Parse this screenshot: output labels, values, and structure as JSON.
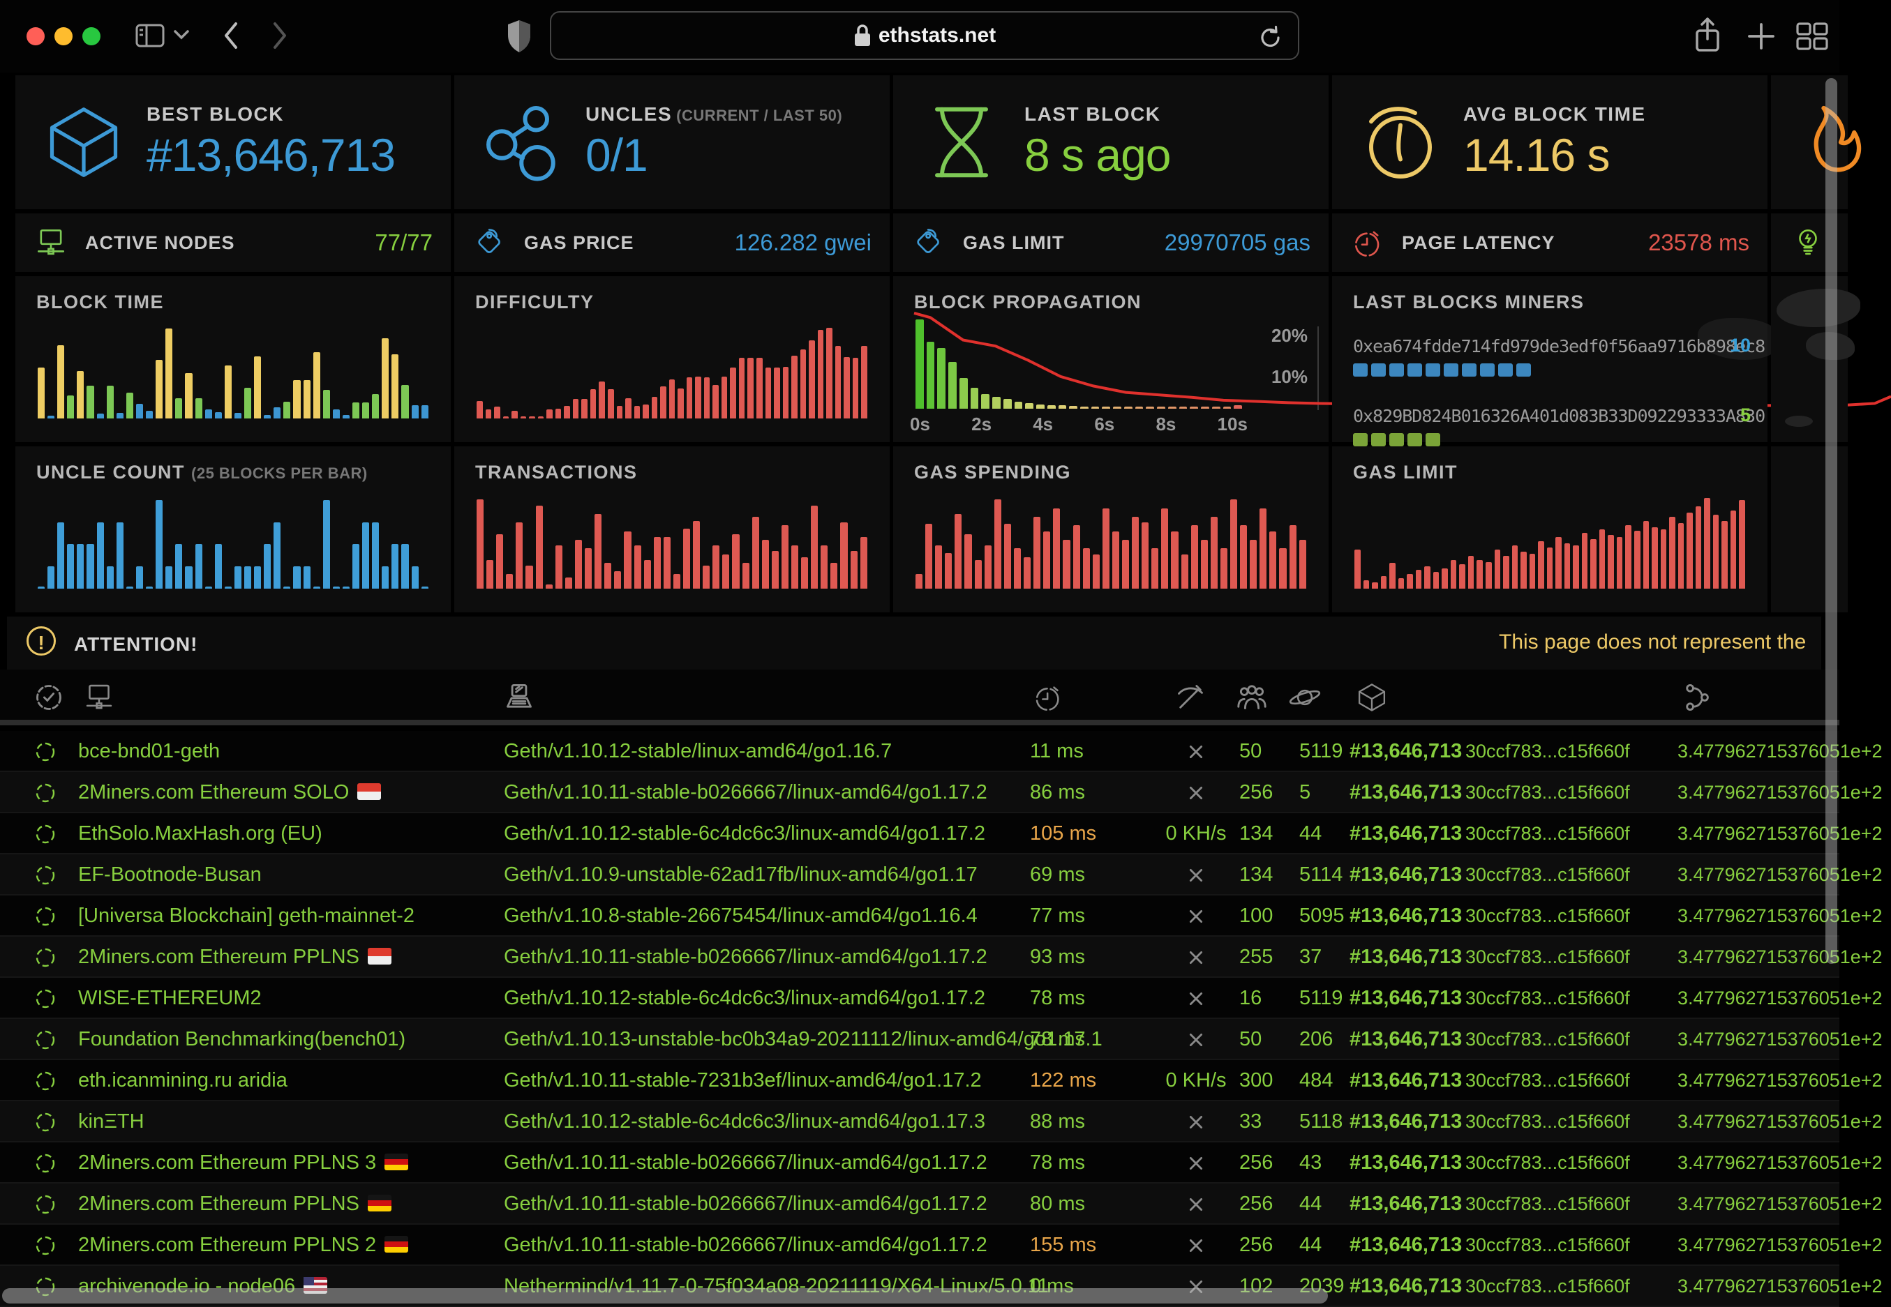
{
  "browser": {
    "url": "ethstats.net",
    "traffic_light_colors": [
      "#ff5f57",
      "#febc2e",
      "#28c840"
    ],
    "icons": [
      "sidebar-toggle-icon",
      "chevron-down-icon",
      "back-icon",
      "forward-icon",
      "shield-icon",
      "lock-icon",
      "reload-icon",
      "share-icon",
      "new-tab-icon",
      "tab-overview-icon"
    ]
  },
  "accent_colors": {
    "blue": "#3d9ad6",
    "green": "#87cf3f",
    "yellow": "#edc967",
    "red": "#e0564d",
    "orange": "#f08a24"
  },
  "stats_top": [
    {
      "label": "BEST BLOCK",
      "value": "#13,646,713",
      "icon": "cube-icon"
    },
    {
      "label": "UNCLES",
      "sublabel": "(CURRENT / LAST 50)",
      "value": "0/1",
      "icon": "uncles-icon"
    },
    {
      "label": "LAST BLOCK",
      "value": "8 s ago",
      "icon": "hourglass-icon"
    },
    {
      "label": "AVG BLOCK TIME",
      "value": "14.16 s",
      "icon": "gauge-icon"
    },
    {
      "label": "",
      "value": "",
      "icon": "flame-icon"
    }
  ],
  "stats_mini": [
    {
      "label": "ACTIVE NODES",
      "value": "77/77",
      "icon": "nodes-icon"
    },
    {
      "label": "GAS PRICE",
      "value": "126.282 gwei",
      "icon": "price-tag-icon"
    },
    {
      "label": "GAS LIMIT",
      "value": "29970705 gas",
      "icon": "price-tag-icon"
    },
    {
      "label": "PAGE LATENCY",
      "value": "23578 ms",
      "icon": "stopwatch-icon"
    },
    {
      "label": "",
      "value": "",
      "icon": "lightbulb-icon"
    }
  ],
  "chart_data": [
    {
      "id": "block-time",
      "type": "bar",
      "title": "BLOCK TIME",
      "values": [
        55,
        3,
        79,
        25,
        51,
        35,
        5,
        35,
        6,
        28,
        16,
        8,
        63,
        97,
        22,
        49,
        22,
        10,
        7,
        57,
        6,
        33,
        67,
        4,
        12,
        18,
        41,
        41,
        71,
        31,
        10,
        4,
        17,
        17,
        26,
        86,
        69,
        36,
        14,
        14
      ],
      "color_codes": [
        "y",
        "b",
        "y",
        "g",
        "y",
        "g",
        "b",
        "g",
        "b",
        "g",
        "b",
        "b",
        "y",
        "y",
        "g",
        "y",
        "g",
        "b",
        "b",
        "y",
        "b",
        "g",
        "y",
        "b",
        "b",
        "g",
        "y",
        "y",
        "y",
        "g",
        "b",
        "b",
        "g",
        "g",
        "g",
        "y",
        "y",
        "g",
        "b",
        "b"
      ],
      "palette": {
        "y": "#eecd63",
        "g": "#7dc855",
        "b": "#3d96d2"
      },
      "ylim": [
        0,
        105
      ]
    },
    {
      "id": "difficulty",
      "type": "bar",
      "title": "DIFFICULTY",
      "values": [
        18,
        9,
        12,
        2,
        8,
        1,
        2,
        2,
        9,
        10,
        13,
        20,
        20,
        30,
        38,
        30,
        13,
        21,
        13,
        14,
        22,
        33,
        40,
        31,
        42,
        43,
        42,
        34,
        43,
        52,
        62,
        62,
        62,
        52,
        52,
        53,
        64,
        71,
        80,
        91,
        93,
        74,
        63,
        62,
        74
      ],
      "color": "#df5952",
      "ylim": [
        0,
        100
      ]
    },
    {
      "id": "block-propagation",
      "type": "bar+line",
      "title": "BLOCK PROPAGATION",
      "values": [
        22,
        16.5,
        15,
        11.5,
        7.5,
        5.2,
        3.6,
        3,
        2.4,
        1.7,
        1.4,
        1.1,
        0.9,
        0.8,
        0.7,
        0.6,
        0.55,
        0.5,
        0.45,
        0.45,
        0.4,
        0.4,
        0.4,
        0.4,
        0.4,
        0.4,
        0.4,
        0.4,
        0.45,
        0.9
      ],
      "colors": [
        "#4fc02c",
        "#5ec335",
        "#6ec63d",
        "#7dc945",
        "#8ccb4c",
        "#99cd53",
        "#a6cf59",
        "#b1d05e",
        "#bbd263",
        "#c4d368",
        "#ccd46c",
        "#d3d470",
        "#d9d373",
        "#ded076",
        "#e1cb77",
        "#e3c577",
        "#e4bf76",
        "#e4b874",
        "#e4b172",
        "#e4ab70",
        "#e3a56e",
        "#e3a06c",
        "#e29b6a",
        "#e29768",
        "#e19367",
        "#e19066",
        "#e18d65",
        "#e08b64",
        "#e08963",
        "#e0635a"
      ],
      "line_color": "#e0312d",
      "ylim": [
        0,
        24
      ],
      "x_ticks": [
        "0s",
        "2s",
        "4s",
        "6s",
        "8s",
        "10s"
      ],
      "y_ticks": [
        "20%",
        "10%"
      ],
      "legend_position": "right"
    },
    {
      "id": "uncle-count",
      "type": "bar",
      "title": "UNCLE COUNT",
      "subtitle": "(25 BLOCKS PER BAR)",
      "values": [
        0,
        1,
        3,
        2,
        2,
        2,
        3,
        1,
        3,
        0,
        1,
        0,
        4,
        1,
        2,
        1,
        2,
        0,
        2,
        0,
        1,
        1,
        1,
        2,
        3,
        0,
        1,
        1,
        0,
        4,
        0,
        0,
        2,
        3,
        3,
        1,
        2,
        2,
        1,
        0
      ],
      "color": "#3f9ed8",
      "ylim": [
        0,
        4.4
      ]
    },
    {
      "id": "transactions",
      "type": "bar",
      "title": "TRANSACTIONS",
      "values": [
        62,
        20,
        38,
        10,
        46,
        16,
        58,
        3,
        30,
        8,
        34,
        28,
        52,
        18,
        12,
        40,
        30,
        20,
        36,
        36,
        10,
        42,
        47,
        16,
        30,
        24,
        38,
        18,
        50,
        34,
        26,
        44,
        30,
        22,
        58,
        30,
        18,
        46,
        26,
        36
      ],
      "color": "#df5952",
      "ylim": [
        0,
        68
      ]
    },
    {
      "id": "gas-spending",
      "type": "bar",
      "title": "GAS SPENDING",
      "values": [
        10,
        45,
        30,
        25,
        52,
        38,
        20,
        30,
        62,
        45,
        28,
        22,
        50,
        40,
        56,
        34,
        44,
        28,
        24,
        56,
        40,
        34,
        50,
        46,
        28,
        56,
        40,
        24,
        44,
        34,
        50,
        28,
        62,
        44,
        34,
        56,
        40,
        28,
        44,
        34
      ],
      "color": "#df5952",
      "ylim": [
        0,
        68
      ]
    },
    {
      "id": "gas-limit",
      "type": "bar",
      "title": "GAS LIMIT",
      "values": [
        38,
        8,
        6,
        12,
        25,
        10,
        14,
        18,
        22,
        16,
        20,
        28,
        24,
        32,
        28,
        26,
        38,
        32,
        42,
        36,
        34,
        46,
        40,
        50,
        44,
        42,
        54,
        48,
        58,
        52,
        50,
        62,
        56,
        66,
        60,
        58,
        70,
        64,
        74,
        80,
        88,
        72,
        66,
        76,
        86
      ],
      "color": "#df5952",
      "ylim": [
        0,
        95
      ]
    }
  ],
  "miners": {
    "title": "LAST BLOCKS MINERS",
    "items": [
      {
        "address": "0xea674fdde714fd979de3edf0f56aa9716b898ec8",
        "count": "10",
        "count_color": "#38a0d9",
        "square_color": "#3c87bf"
      },
      {
        "address": "0x829BD824B016326A401d083B33D092293333A830",
        "count": "5",
        "count_color": "#87cf3f",
        "square_color": "#7ba438"
      }
    ]
  },
  "attention": {
    "label": "ATTENTION!",
    "marquee": "This page does not represent the"
  },
  "table": {
    "header_icons": [
      "status-check-icon",
      "node-icon",
      "node-type-icon",
      "latency-icon",
      "mining-icon",
      "peers-icon",
      "pending-icon",
      "last-block-icon",
      "fork-icon"
    ],
    "shared": {
      "last_block": "#13,646,713",
      "block_hash": "30ccf783...c15f660f",
      "total_difficulty": "3.477962715376051e+2"
    },
    "rows": [
      {
        "name": "bce-bnd01-geth",
        "flag": null,
        "type": "Geth/v1.10.12-stable/linux-amd64/go1.16.7",
        "latency": "11 ms",
        "latency_state": "ok",
        "mining": "x",
        "peers": "50",
        "pending": "5119"
      },
      {
        "name": "2Miners.com Ethereum SOLO",
        "flag": "sg",
        "type": "Geth/v1.10.11-stable-b0266667/linux-amd64/go1.17.2",
        "latency": "86 ms",
        "latency_state": "ok",
        "mining": "x",
        "peers": "256",
        "pending": "5"
      },
      {
        "name": "EthSolo.MaxHash.org (EU)",
        "flag": null,
        "type": "Geth/v1.10.12-stable-6c4dc6c3/linux-amd64/go1.17.2",
        "latency": "105 ms",
        "latency_state": "warn",
        "mining": "0 KH/s",
        "peers": "134",
        "pending": "44"
      },
      {
        "name": "EF-Bootnode-Busan",
        "flag": null,
        "type": "Geth/v1.10.9-unstable-62ad17fb/linux-amd64/go1.17",
        "latency": "69 ms",
        "latency_state": "ok",
        "mining": "x",
        "peers": "134",
        "pending": "5114"
      },
      {
        "name": "[Universa Blockchain] geth-mainnet-2",
        "flag": null,
        "type": "Geth/v1.10.8-stable-26675454/linux-amd64/go1.16.4",
        "latency": "77 ms",
        "latency_state": "ok",
        "mining": "x",
        "peers": "100",
        "pending": "5095"
      },
      {
        "name": "2Miners.com Ethereum PPLNS",
        "flag": "sg",
        "type": "Geth/v1.10.11-stable-b0266667/linux-amd64/go1.17.2",
        "latency": "93 ms",
        "latency_state": "ok",
        "mining": "x",
        "peers": "255",
        "pending": "37"
      },
      {
        "name": "WISE-ETHEREUM2",
        "flag": null,
        "type": "Geth/v1.10.12-stable-6c4dc6c3/linux-amd64/go1.17.2",
        "latency": "78 ms",
        "latency_state": "ok",
        "mining": "x",
        "peers": "16",
        "pending": "5119"
      },
      {
        "name": "Foundation Benchmarking(bench01)",
        "flag": null,
        "type": "Geth/v1.10.13-unstable-bc0b34a9-20211112/linux-amd64/go1.17.1",
        "latency": "78 ms",
        "latency_state": "ok",
        "mining": "x",
        "peers": "50",
        "pending": "206"
      },
      {
        "name": "eth.icanmining.ru aridia",
        "flag": null,
        "type": "Geth/v1.10.11-stable-7231b3ef/linux-amd64/go1.17.2",
        "latency": "122 ms",
        "latency_state": "warn",
        "mining": "0 KH/s",
        "peers": "300",
        "pending": "484"
      },
      {
        "name": "kinΞTH",
        "flag": null,
        "type": "Geth/v1.10.12-stable-6c4dc6c3/linux-amd64/go1.17.3",
        "latency": "88 ms",
        "latency_state": "ok",
        "mining": "x",
        "peers": "33",
        "pending": "5118"
      },
      {
        "name": "2Miners.com Ethereum PPLNS 3",
        "flag": "de",
        "type": "Geth/v1.10.11-stable-b0266667/linux-amd64/go1.17.2",
        "latency": "78 ms",
        "latency_state": "ok",
        "mining": "x",
        "peers": "256",
        "pending": "43"
      },
      {
        "name": "2Miners.com Ethereum PPLNS",
        "flag": "de",
        "type": "Geth/v1.10.11-stable-b0266667/linux-amd64/go1.17.2",
        "latency": "80 ms",
        "latency_state": "ok",
        "mining": "x",
        "peers": "256",
        "pending": "44"
      },
      {
        "name": "2Miners.com Ethereum PPLNS 2",
        "flag": "de",
        "type": "Geth/v1.10.11-stable-b0266667/linux-amd64/go1.17.2",
        "latency": "155 ms",
        "latency_state": "warn",
        "mining": "x",
        "peers": "256",
        "pending": "44"
      },
      {
        "name": "archivenode.io - node06",
        "flag": "us",
        "type": "Nethermind/v1.11.7-0-75f034a08-20211119/X64-Linux/5.0.11",
        "latency": "0 ms",
        "latency_state": "ok",
        "mining": "x",
        "peers": "102",
        "pending": "2039"
      }
    ]
  }
}
